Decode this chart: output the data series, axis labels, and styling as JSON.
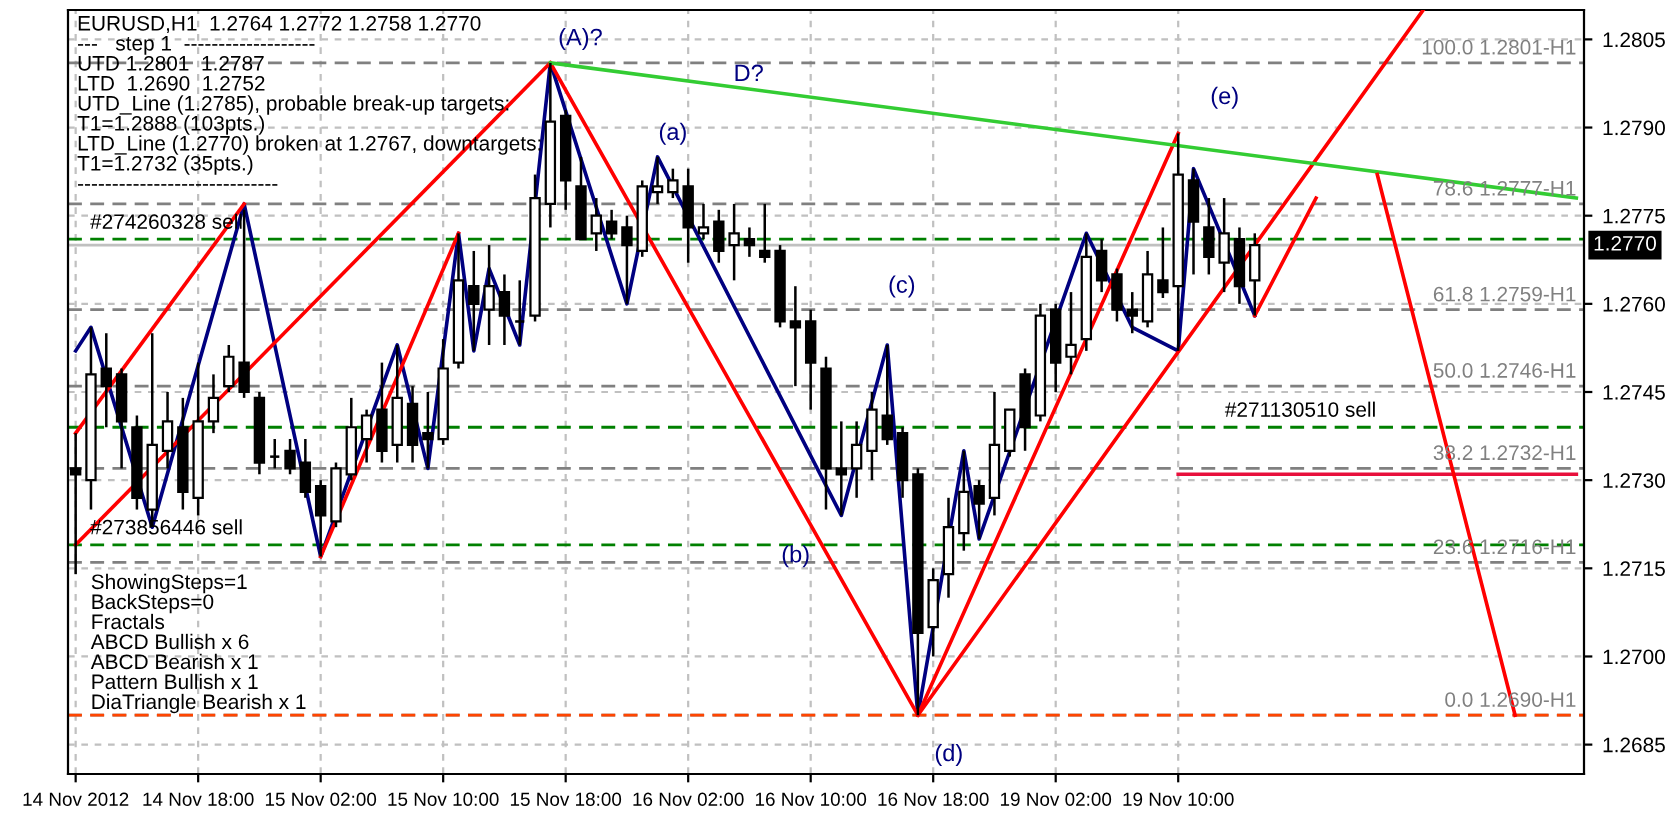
{
  "chart_data": {
    "type": "candlestick",
    "title": "EURUSD,H1  1.2764 1.2772 1.2758 1.2770",
    "categories": [
      "14 Nov 2012",
      null,
      null,
      null,
      null,
      null,
      null,
      null,
      "14 Nov 18:00",
      null,
      null,
      null,
      null,
      null,
      null,
      null,
      "15 Nov 02:00",
      null,
      null,
      null,
      null,
      null,
      null,
      null,
      "15 Nov 10:00",
      null,
      null,
      null,
      null,
      null,
      null,
      null,
      "15 Nov 18:00",
      null,
      null,
      null,
      null,
      null,
      null,
      null,
      "16 Nov 02:00",
      null,
      null,
      null,
      null,
      null,
      null,
      null,
      "16 Nov 10:00",
      null,
      null,
      null,
      null,
      null,
      null,
      null,
      "16 Nov 18:00",
      null,
      null,
      null,
      null,
      null,
      null,
      null,
      "19 Nov 02:00",
      null,
      null,
      null,
      null,
      null,
      null,
      null,
      "19 Nov 10:00",
      null,
      null,
      null,
      null,
      null,
      null,
      null,
      null,
      null,
      null,
      null,
      null,
      null,
      null,
      null,
      null,
      null,
      null,
      null,
      null,
      null,
      null,
      null,
      null,
      null,
      null
    ],
    "ohlc": [
      [
        1.2732,
        1.2738,
        1.2714,
        1.2731
      ],
      [
        1.273,
        1.2756,
        1.2725,
        1.2748
      ],
      [
        1.2749,
        1.2755,
        1.2739,
        1.2746
      ],
      [
        1.2748,
        1.2749,
        1.2732,
        1.274
      ],
      [
        1.2739,
        1.2741,
        1.2725,
        1.2727
      ],
      [
        1.2725,
        1.2755,
        1.2722,
        1.2736
      ],
      [
        1.2735,
        1.2745,
        1.2732,
        1.274
      ],
      [
        1.2739,
        1.2744,
        1.2725,
        1.2728
      ],
      [
        1.2727,
        1.275,
        1.2724,
        1.274
      ],
      [
        1.274,
        1.2748,
        1.2738,
        1.2744
      ],
      [
        1.2746,
        1.2753,
        1.2745,
        1.2751
      ],
      [
        1.275,
        1.2776,
        1.2744,
        1.2745
      ],
      [
        1.2744,
        1.2745,
        1.2731,
        1.2733
      ],
      [
        1.2734,
        1.2737,
        1.2732,
        1.2734
      ],
      [
        1.2735,
        1.2737,
        1.2731,
        1.2732
      ],
      [
        1.2733,
        1.2737,
        1.2727,
        1.2728
      ],
      [
        1.2729,
        1.273,
        1.2717,
        1.2724
      ],
      [
        1.2723,
        1.2733,
        1.2722,
        1.2732
      ],
      [
        1.2731,
        1.2744,
        1.273,
        1.2739
      ],
      [
        1.2737,
        1.2742,
        1.2733,
        1.2741
      ],
      [
        1.2742,
        1.275,
        1.2733,
        1.2735
      ],
      [
        1.2736,
        1.2753,
        1.2733,
        1.2744
      ],
      [
        1.2743,
        1.2746,
        1.2733,
        1.2736
      ],
      [
        1.2738,
        1.2745,
        1.2732,
        1.2737
      ],
      [
        1.2737,
        1.2754,
        1.2736,
        1.2749
      ],
      [
        1.275,
        1.2772,
        1.2749,
        1.2764
      ],
      [
        1.2763,
        1.2769,
        1.2752,
        1.276
      ],
      [
        1.2759,
        1.277,
        1.2753,
        1.2763
      ],
      [
        1.2762,
        1.2765,
        1.2753,
        1.2758
      ],
      [
        1.2757,
        1.2764,
        1.2753,
        1.2757
      ],
      [
        1.2758,
        1.2782,
        1.2757,
        1.2778
      ],
      [
        1.2777,
        1.2801,
        1.2773,
        1.2791
      ],
      [
        1.2792,
        1.2793,
        1.2776,
        1.2781
      ],
      [
        1.278,
        1.2785,
        1.2771,
        1.2771
      ],
      [
        1.2772,
        1.2778,
        1.2769,
        1.2775
      ],
      [
        1.2774,
        1.2776,
        1.2771,
        1.2772
      ],
      [
        1.2773,
        1.2775,
        1.276,
        1.277
      ],
      [
        1.2769,
        1.2781,
        1.2768,
        1.278
      ],
      [
        1.2779,
        1.2785,
        1.2777,
        1.278
      ],
      [
        1.2779,
        1.2783,
        1.2778,
        1.2781
      ],
      [
        1.278,
        1.2783,
        1.2767,
        1.2773
      ],
      [
        1.2772,
        1.2777,
        1.2771,
        1.2773
      ],
      [
        1.2774,
        1.2776,
        1.2767,
        1.2769
      ],
      [
        1.277,
        1.2777,
        1.2764,
        1.2772
      ],
      [
        1.2771,
        1.2773,
        1.2768,
        1.277
      ],
      [
        1.2769,
        1.2777,
        1.2767,
        1.2768
      ],
      [
        1.2769,
        1.277,
        1.2756,
        1.2757
      ],
      [
        1.2757,
        1.2763,
        1.2746,
        1.2756
      ],
      [
        1.2757,
        1.2759,
        1.2742,
        1.275
      ],
      [
        1.2749,
        1.2751,
        1.2725,
        1.2732
      ],
      [
        1.2732,
        1.274,
        1.2724,
        1.2731
      ],
      [
        1.2732,
        1.274,
        1.2727,
        1.2736
      ],
      [
        1.2735,
        1.2745,
        1.273,
        1.2742
      ],
      [
        1.2741,
        1.2753,
        1.2736,
        1.2737
      ],
      [
        1.2738,
        1.2739,
        1.2727,
        1.273
      ],
      [
        1.2731,
        1.2732,
        1.269,
        1.2704
      ],
      [
        1.2705,
        1.2715,
        1.27,
        1.2713
      ],
      [
        1.2714,
        1.2727,
        1.271,
        1.2722
      ],
      [
        1.2721,
        1.2735,
        1.2718,
        1.2728
      ],
      [
        1.2729,
        1.273,
        1.272,
        1.2726
      ],
      [
        1.2727,
        1.2745,
        1.2724,
        1.2736
      ],
      [
        1.2735,
        1.2742,
        1.2734,
        1.2742
      ],
      [
        1.2748,
        1.2749,
        1.2735,
        1.2739
      ],
      [
        1.2741,
        1.276,
        1.274,
        1.2758
      ],
      [
        1.2759,
        1.276,
        1.2745,
        1.275
      ],
      [
        1.2751,
        1.2762,
        1.2748,
        1.2753
      ],
      [
        1.2754,
        1.2772,
        1.2752,
        1.2768
      ],
      [
        1.2769,
        1.2771,
        1.2762,
        1.2764
      ],
      [
        1.2765,
        1.2766,
        1.2757,
        1.2759
      ],
      [
        1.2759,
        1.2762,
        1.2755,
        1.2758
      ],
      [
        1.2757,
        1.2769,
        1.2756,
        1.2765
      ],
      [
        1.2764,
        1.2773,
        1.2761,
        1.2762
      ],
      [
        1.2763,
        1.2789,
        1.2752,
        1.2782
      ],
      [
        1.2781,
        1.2783,
        1.2765,
        1.2774
      ],
      [
        1.2773,
        1.2778,
        1.2765,
        1.2768
      ],
      [
        1.2767,
        1.2778,
        1.2762,
        1.2772
      ],
      [
        1.2771,
        1.2773,
        1.276,
        1.2763
      ],
      [
        1.2764,
        1.2772,
        1.2758,
        1.277
      ],
      null,
      null,
      null,
      null,
      null,
      null,
      null,
      null,
      null,
      null,
      null,
      null,
      null,
      null,
      null,
      null,
      null,
      null,
      null,
      null,
      null
    ],
    "series": [
      {
        "type": "line",
        "color": "#000080",
        "values": [
          1.2752,
          1.2756,
          null,
          null,
          null,
          1.2722,
          null,
          null,
          null,
          null,
          null,
          1.2777,
          null,
          null,
          null,
          null,
          1.2717,
          null,
          null,
          null,
          null,
          1.2753,
          null,
          1.2732,
          null,
          1.2772,
          1.2752,
          1.2766,
          null,
          1.2753,
          null,
          1.2801,
          null,
          null,
          null,
          null,
          1.276,
          null,
          1.2785,
          null,
          null,
          null,
          null,
          null,
          null,
          null,
          null,
          null,
          null,
          null,
          1.2724,
          null,
          null,
          1.2753,
          null,
          1.269,
          null,
          null,
          1.2735,
          1.272,
          null,
          null,
          null,
          null,
          null,
          null,
          1.2772,
          null,
          null,
          1.2756,
          null,
          null,
          1.2752,
          1.2783,
          null,
          null,
          null,
          1.2758,
          null,
          null,
          null,
          null,
          null,
          null,
          null,
          null,
          null,
          null,
          null,
          null,
          null,
          null,
          null,
          null,
          null,
          null,
          null,
          null,
          null
        ]
      },
      {
        "type": "line",
        "color": "#ff0000",
        "values": [
          1.2738,
          null,
          null,
          null,
          null,
          null,
          null,
          null,
          null,
          null,
          null,
          1.2777,
          null,
          null,
          null,
          null,
          null,
          null,
          null,
          null,
          null,
          null,
          null,
          null,
          null,
          null,
          null,
          null,
          null,
          null,
          null,
          null,
          null,
          null,
          null,
          null,
          null,
          null,
          null,
          null,
          null,
          null,
          null,
          null,
          null,
          null,
          null,
          null,
          null,
          null,
          null,
          null,
          null,
          null,
          null,
          null,
          null,
          null,
          null,
          null,
          null,
          null,
          null,
          null,
          null,
          null,
          null,
          null,
          null,
          null,
          null,
          null,
          null,
          null,
          null,
          null,
          null,
          null,
          null,
          null,
          null,
          null,
          null,
          null,
          null,
          null,
          null,
          null,
          null,
          null,
          null,
          null,
          null,
          null,
          null,
          null,
          null,
          null,
          null
        ]
      },
      {
        "type": "line",
        "color": "#ff0000",
        "values": [
          1.2719,
          null,
          null,
          null,
          null,
          null,
          null,
          null,
          null,
          null,
          null,
          null,
          null,
          null,
          null,
          null,
          null,
          null,
          null,
          null,
          null,
          null,
          null,
          null,
          null,
          null,
          null,
          null,
          null,
          null,
          null,
          1.2801,
          null,
          null,
          null,
          null,
          null,
          null,
          null,
          null,
          null,
          null,
          null,
          null,
          null,
          null,
          null,
          null,
          null,
          null,
          null,
          null,
          null,
          null,
          null,
          null,
          null,
          null,
          null,
          null,
          null,
          null,
          null,
          null,
          null,
          null,
          null,
          null,
          null,
          null,
          null,
          null,
          null,
          null,
          null,
          null,
          null,
          null,
          null,
          null,
          null,
          null,
          null,
          null,
          null,
          null,
          null,
          null,
          null,
          null,
          null,
          null,
          null,
          null,
          null,
          null,
          null,
          null,
          null
        ]
      },
      {
        "type": "line",
        "color": "#ff0000",
        "values": [
          null,
          null,
          null,
          null,
          null,
          null,
          null,
          null,
          null,
          null,
          null,
          null,
          null,
          null,
          null,
          null,
          1.2717,
          null,
          null,
          null,
          null,
          null,
          null,
          null,
          null,
          1.2772,
          null,
          null,
          null,
          null,
          null,
          null,
          null,
          null,
          null,
          null,
          null,
          null,
          null,
          null,
          null,
          null,
          null,
          null,
          null,
          null,
          null,
          null,
          null,
          null,
          null,
          null,
          null,
          null,
          null,
          null,
          null,
          null,
          null,
          null,
          null,
          null,
          null,
          null,
          null,
          null,
          null,
          null,
          null,
          null,
          null,
          null,
          null,
          null,
          null,
          null,
          null,
          null,
          null,
          null,
          null,
          null,
          null,
          null,
          null,
          null,
          null,
          null,
          null,
          null,
          null,
          null,
          null,
          null,
          null,
          null,
          null,
          null,
          null
        ]
      },
      {
        "type": "line",
        "color": "#ff0000",
        "values": [
          null,
          null,
          null,
          null,
          null,
          null,
          null,
          null,
          null,
          null,
          null,
          null,
          null,
          null,
          null,
          null,
          null,
          null,
          null,
          null,
          null,
          null,
          null,
          null,
          null,
          null,
          null,
          null,
          null,
          null,
          null,
          1.2801,
          null,
          null,
          null,
          null,
          null,
          null,
          null,
          null,
          null,
          null,
          null,
          null,
          null,
          null,
          null,
          null,
          null,
          null,
          null,
          null,
          null,
          null,
          null,
          1.269,
          null,
          null,
          null,
          null,
          null,
          null,
          null,
          null,
          null,
          null,
          null,
          null,
          null,
          null,
          null,
          null,
          1.2789,
          null,
          null,
          null,
          null,
          null,
          null,
          null,
          null,
          null,
          null,
          null,
          null,
          null,
          null,
          null,
          null,
          null,
          null,
          null,
          null,
          null,
          null,
          null,
          null,
          null,
          null
        ]
      },
      {
        "type": "line",
        "color": "#ff0000",
        "values": [
          null,
          null,
          null,
          null,
          null,
          null,
          null,
          null,
          null,
          null,
          null,
          null,
          null,
          null,
          null,
          null,
          null,
          null,
          null,
          null,
          null,
          null,
          null,
          null,
          null,
          null,
          null,
          null,
          null,
          null,
          null,
          null,
          null,
          null,
          null,
          null,
          null,
          null,
          null,
          null,
          null,
          null,
          null,
          null,
          null,
          null,
          null,
          null,
          null,
          null,
          null,
          null,
          null,
          null,
          null,
          1.269,
          null,
          null,
          null,
          null,
          null,
          null,
          null,
          null,
          null,
          null,
          null,
          null,
          null,
          null,
          null,
          null,
          null,
          null,
          null,
          null,
          null,
          null,
          null,
          null,
          null,
          null,
          null,
          null,
          null,
          null,
          null,
          null,
          1.281,
          null,
          null,
          null,
          null,
          null,
          null,
          null,
          null,
          null,
          null
        ]
      },
      {
        "type": "line",
        "color": "#33cc33",
        "values": [
          null,
          null,
          null,
          null,
          null,
          null,
          null,
          null,
          null,
          null,
          null,
          null,
          null,
          null,
          null,
          null,
          null,
          null,
          null,
          null,
          null,
          null,
          null,
          null,
          null,
          null,
          null,
          null,
          null,
          null,
          null,
          1.2801,
          null,
          null,
          null,
          null,
          null,
          null,
          null,
          null,
          null,
          null,
          null,
          null,
          null,
          null,
          null,
          null,
          null,
          null,
          null,
          null,
          null,
          null,
          null,
          null,
          null,
          null,
          null,
          null,
          null,
          null,
          null,
          null,
          null,
          null,
          null,
          null,
          null,
          null,
          null,
          null,
          null,
          null,
          null,
          null,
          null,
          null,
          null,
          null,
          null,
          null,
          null,
          null,
          null,
          null,
          null,
          null,
          null,
          null,
          null,
          null,
          null,
          null,
          null,
          null,
          null,
          null,
          1.2778
        ]
      },
      {
        "type": "line",
        "color": "#e8103c",
        "values": [
          null,
          null,
          null,
          null,
          null,
          null,
          null,
          null,
          null,
          null,
          null,
          null,
          null,
          null,
          null,
          null,
          null,
          null,
          null,
          null,
          null,
          null,
          null,
          null,
          null,
          null,
          null,
          null,
          null,
          null,
          null,
          null,
          null,
          null,
          null,
          null,
          null,
          null,
          null,
          null,
          null,
          null,
          null,
          null,
          null,
          null,
          null,
          null,
          null,
          null,
          null,
          null,
          null,
          null,
          null,
          null,
          null,
          null,
          null,
          null,
          null,
          null,
          null,
          null,
          null,
          null,
          null,
          null,
          null,
          null,
          null,
          null,
          1.2731,
          null,
          null,
          null,
          null,
          null,
          null,
          null,
          null,
          null,
          null,
          null,
          null,
          null,
          null,
          null,
          null,
          null,
          null,
          null,
          null,
          null,
          null,
          null,
          null,
          null,
          1.2731
        ]
      },
      {
        "type": "line",
        "color": "#ff0000",
        "values": [
          null,
          null,
          null,
          null,
          null,
          null,
          null,
          null,
          null,
          null,
          null,
          null,
          null,
          null,
          null,
          null,
          null,
          null,
          null,
          null,
          null,
          null,
          null,
          null,
          null,
          null,
          null,
          null,
          null,
          null,
          null,
          null,
          null,
          null,
          null,
          null,
          null,
          null,
          null,
          null,
          null,
          null,
          null,
          null,
          null,
          null,
          null,
          null,
          null,
          null,
          null,
          null,
          null,
          null,
          null,
          null,
          null,
          null,
          null,
          null,
          null,
          null,
          null,
          null,
          null,
          null,
          null,
          null,
          null,
          null,
          null,
          null,
          null,
          null,
          null,
          null,
          null,
          1.2758,
          null,
          null,
          null,
          1.2778,
          null,
          null,
          null,
          null,
          null,
          null,
          null,
          null,
          null,
          null,
          null,
          null,
          null,
          null,
          null,
          null,
          null
        ]
      },
      {
        "type": "line",
        "color": "#ff0000",
        "values": [
          null,
          null,
          null,
          null,
          null,
          null,
          null,
          null,
          null,
          null,
          null,
          null,
          null,
          null,
          null,
          null,
          null,
          null,
          null,
          null,
          null,
          null,
          null,
          null,
          null,
          null,
          null,
          null,
          null,
          null,
          null,
          null,
          null,
          null,
          null,
          null,
          null,
          null,
          null,
          null,
          null,
          null,
          null,
          null,
          null,
          null,
          null,
          null,
          null,
          null,
          null,
          null,
          null,
          null,
          null,
          null,
          null,
          null,
          null,
          null,
          null,
          null,
          null,
          null,
          null,
          null,
          null,
          null,
          null,
          null,
          null,
          null,
          null,
          null,
          null,
          null,
          null,
          null,
          null,
          null,
          null,
          null,
          null,
          null,
          null,
          1.2782,
          null,
          null,
          null,
          null,
          null,
          null,
          null,
          null,
          1.269,
          null,
          null,
          null,
          null
        ]
      }
    ],
    "ref_lines": [
      {
        "axis": "y",
        "value": 1.2801,
        "label": "100.0 1.2801-H1",
        "color": "#808080",
        "line_style": "dashed"
      },
      {
        "axis": "y",
        "value": 1.2777,
        "label": "78.6 1.2777-H1",
        "color": "#808080",
        "line_style": "dashed"
      },
      {
        "axis": "y",
        "value": 1.2759,
        "label": "61.8 1.2759-H1",
        "color": "#808080",
        "line_style": "dashed"
      },
      {
        "axis": "y",
        "value": 1.2746,
        "label": "50.0 1.2746-H1",
        "color": "#808080",
        "line_style": "dashed"
      },
      {
        "axis": "y",
        "value": 1.2732,
        "label": "38.2 1.2732-H1",
        "color": "#808080",
        "line_style": "dashed"
      },
      {
        "axis": "y",
        "value": 1.2716,
        "label": "23.6 1.2716-H1",
        "color": "#808080",
        "line_style": "dashed"
      },
      {
        "axis": "y",
        "value": 1.269,
        "label": "0.0 1.2690-H1",
        "color": "#808080",
        "line_style": "dashed"
      },
      {
        "axis": "y",
        "value": 1.2771,
        "color": "#008000",
        "line_style": "dashed"
      },
      {
        "axis": "y",
        "value": 1.2739,
        "color": "#008000",
        "line_style": "dashed"
      },
      {
        "axis": "y",
        "value": 1.2719,
        "color": "#008000",
        "line_style": "dashed"
      },
      {
        "axis": "y",
        "value": 1.269,
        "color": "#ff4500",
        "line_style": "dashed"
      },
      {
        "axis": "y",
        "value": 1.277,
        "label": "1.2770",
        "color": "#c0c0c0",
        "line_style": "solid"
      }
    ],
    "annotations": [
      "---   step 1  -------------------",
      "UTD 1.2801  1.2787",
      "LTD  1.2690  1.2752",
      "UTD_Line (1.2785), probable break-up targets:",
      "T1=1.2888 (103pts.)",
      "LTD_Line (1.2770) broken at 1.2767, downtargets:",
      "T1=1.2732 (35pts.)",
      "-----------------------------",
      "ShowingSteps=1",
      "BackSteps=0",
      "Fractals",
      "ABCD Bullish x 6",
      "ABCD Bearish x 1",
      "Pattern Bullish x 1",
      "DiaTriangle Bearish x 1",
      "#274260328 sell",
      "#271130510 sell",
      "#273856446 sell",
      "(A)?",
      "D?",
      "(a)",
      "(b)",
      "(c)",
      "(d)",
      "(e)"
    ],
    "ylim": [
      1.268,
      1.281
    ],
    "yticks": [
      1.2685,
      {
        "value": 1.27,
        "label": "1.2700"
      },
      1.2715,
      {
        "value": 1.273,
        "label": "1.2730"
      },
      1.2745,
      {
        "value": 1.276,
        "label": "1.2760"
      },
      1.2775,
      {
        "value": 1.279,
        "label": "1.2790"
      },
      1.2805
    ],
    "grid": true
  }
}
